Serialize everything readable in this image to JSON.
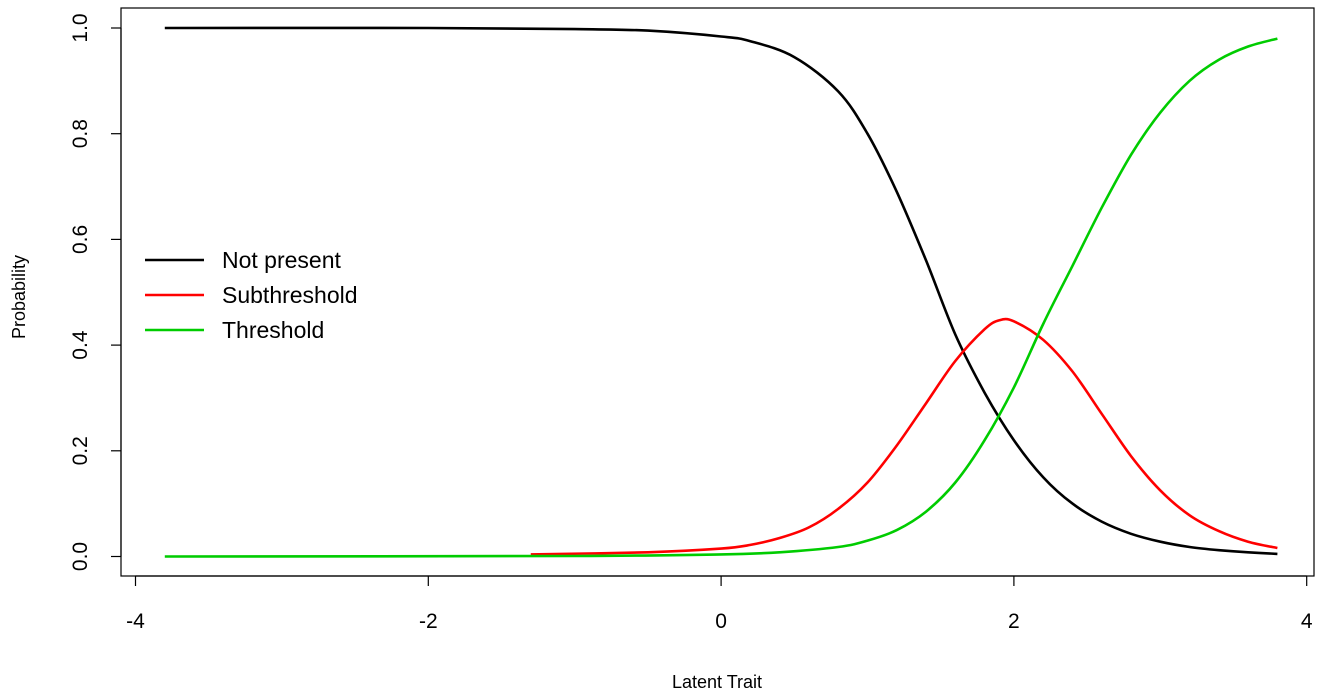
{
  "chart_data": {
    "type": "line",
    "title": "",
    "xlabel": "Latent Trait",
    "ylabel": "Probability",
    "xlim": [
      -4,
      4
    ],
    "ylim": [
      0,
      1
    ],
    "xticks": [
      -4,
      -2,
      0,
      2,
      4
    ],
    "yticks": [
      0.0,
      0.2,
      0.4,
      0.6,
      0.8,
      1.0
    ],
    "xtick_labels": [
      "-4",
      "-2",
      "0",
      "2",
      "4"
    ],
    "ytick_labels": [
      "0.0",
      "0.2",
      "0.4",
      "0.6",
      "0.8",
      "1.0"
    ],
    "grid": false,
    "legend_position": "center-left",
    "series": [
      {
        "name": "Not present",
        "color": "#000000",
        "x": [
          -3.8,
          -2.0,
          -1.0,
          -0.5,
          0.0,
          0.2,
          0.5,
          0.8,
          1.0,
          1.2,
          1.4,
          1.6,
          1.8,
          2.0,
          2.2,
          2.4,
          2.6,
          2.8,
          3.0,
          3.2,
          3.4,
          3.6,
          3.8
        ],
        "y": [
          1.0,
          1.0,
          0.998,
          0.995,
          0.984,
          0.975,
          0.945,
          0.88,
          0.8,
          0.69,
          0.56,
          0.42,
          0.31,
          0.22,
          0.15,
          0.1,
          0.066,
          0.043,
          0.028,
          0.018,
          0.012,
          0.008,
          0.005
        ]
      },
      {
        "name": "Subthreshold",
        "color": "#ff0000",
        "x": [
          -1.3,
          -0.5,
          0.0,
          0.2,
          0.4,
          0.6,
          0.8,
          1.0,
          1.2,
          1.4,
          1.6,
          1.8,
          1.9,
          2.0,
          2.2,
          2.4,
          2.6,
          2.8,
          3.0,
          3.2,
          3.4,
          3.6,
          3.8
        ],
        "y": [
          0.004,
          0.008,
          0.015,
          0.022,
          0.035,
          0.055,
          0.09,
          0.14,
          0.21,
          0.29,
          0.37,
          0.43,
          0.447,
          0.445,
          0.41,
          0.35,
          0.27,
          0.19,
          0.125,
          0.078,
          0.048,
          0.028,
          0.016
        ]
      },
      {
        "name": "Threshold",
        "color": "#00cc00",
        "x": [
          -3.8,
          -1.0,
          0.0,
          0.4,
          0.8,
          1.0,
          1.2,
          1.4,
          1.6,
          1.8,
          2.0,
          2.2,
          2.4,
          2.6,
          2.8,
          3.0,
          3.2,
          3.4,
          3.6,
          3.8
        ],
        "y": [
          0.0,
          0.001,
          0.004,
          0.008,
          0.018,
          0.03,
          0.05,
          0.085,
          0.14,
          0.22,
          0.32,
          0.44,
          0.55,
          0.66,
          0.76,
          0.84,
          0.9,
          0.94,
          0.965,
          0.98
        ]
      }
    ]
  }
}
